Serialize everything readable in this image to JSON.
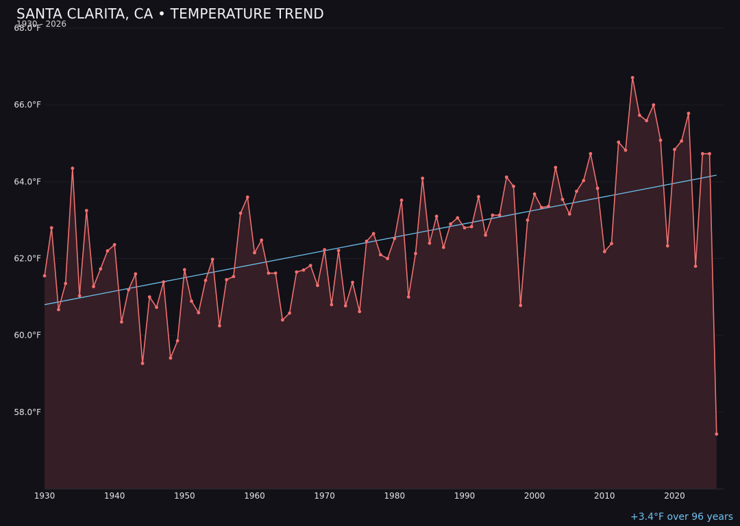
{
  "header": {
    "title": "SANTA CLARITA, CA • TEMPERATURE TREND",
    "subtitle": "1930 - 2026"
  },
  "footer": {
    "trend_note": "+3.4°F over 96 years"
  },
  "colors": {
    "background": "#121117",
    "series_line": "#f07070",
    "series_fill": "#351e25",
    "trend_line": "#6ec1f0",
    "grid": "#1e1e25",
    "tick_text": "#e4e4e8"
  },
  "chart_data": {
    "type": "line",
    "title": "SANTA CLARITA, CA • TEMPERATURE TREND",
    "subtitle": "1930 - 2026",
    "xlabel": "",
    "ylabel": "",
    "xlim": [
      1930,
      2027
    ],
    "ylim": [
      56.0,
      68.0
    ],
    "x_ticks": [
      1930,
      1940,
      1950,
      1960,
      1970,
      1980,
      1990,
      2000,
      2010,
      2020
    ],
    "y_ticks": [
      58.0,
      60.0,
      62.0,
      64.0,
      66.0,
      68.0
    ],
    "y_tick_labels": [
      "58.0°F",
      "60.0°F",
      "62.0°F",
      "64.0°F",
      "66.0°F",
      "68.0°F"
    ],
    "grid": true,
    "legend": "none",
    "series": [
      {
        "x": [
          1930,
          1931,
          1932,
          1933,
          1934,
          1935,
          1936,
          1937,
          1938,
          1939,
          1940,
          1941,
          1942,
          1943,
          1944,
          1945,
          1946,
          1947,
          1948,
          1949,
          1950,
          1951,
          1952,
          1953,
          1954,
          1955,
          1956,
          1957,
          1958,
          1959,
          1960,
          1961,
          1962,
          1963,
          1964,
          1965,
          1966,
          1967,
          1968,
          1969,
          1970,
          1971,
          1972,
          1973,
          1974,
          1975,
          1976,
          1977,
          1978,
          1979,
          1980,
          1981,
          1982,
          1983,
          1984,
          1985,
          1986,
          1987,
          1988,
          1989,
          1990,
          1991,
          1992,
          1993,
          1994,
          1995,
          1996,
          1997,
          1998,
          1999,
          2000,
          2001,
          2002,
          2003,
          2004,
          2005,
          2006,
          2007,
          2008,
          2009,
          2010,
          2011,
          2012,
          2013,
          2014,
          2015,
          2016,
          2017,
          2018,
          2019,
          2020,
          2021,
          2022,
          2023,
          2024,
          2025,
          2026
        ],
        "y": [
          61.55,
          62.8,
          60.67,
          61.35,
          64.35,
          61.03,
          63.25,
          61.27,
          61.73,
          62.2,
          62.36,
          60.35,
          61.19,
          61.6,
          59.27,
          61.0,
          60.73,
          61.39,
          59.41,
          59.86,
          61.71,
          60.89,
          60.59,
          61.43,
          61.98,
          60.25,
          61.45,
          61.53,
          63.18,
          63.6,
          62.15,
          62.48,
          61.62,
          61.62,
          60.4,
          60.58,
          61.65,
          61.7,
          61.82,
          61.3,
          62.23,
          60.8,
          62.21,
          60.77,
          61.38,
          60.62,
          62.45,
          62.65,
          62.1,
          62.0,
          62.52,
          63.52,
          61.0,
          62.13,
          64.09,
          62.4,
          63.1,
          62.29,
          62.9,
          63.06,
          62.8,
          62.83,
          63.61,
          62.61,
          63.13,
          63.13,
          64.12,
          63.88,
          60.78,
          63.0,
          63.68,
          63.33,
          63.36,
          64.37,
          63.54,
          63.16,
          63.75,
          64.03,
          64.73,
          63.83,
          62.18,
          62.39,
          65.03,
          64.82,
          66.71,
          65.73,
          65.59,
          66.0,
          65.08,
          62.33,
          64.84,
          65.06,
          65.78,
          61.8,
          64.73,
          64.73,
          57.43
        ]
      }
    ],
    "trend_line": {
      "x": [
        1930,
        2026
      ],
      "y": [
        60.8,
        64.17
      ]
    }
  }
}
